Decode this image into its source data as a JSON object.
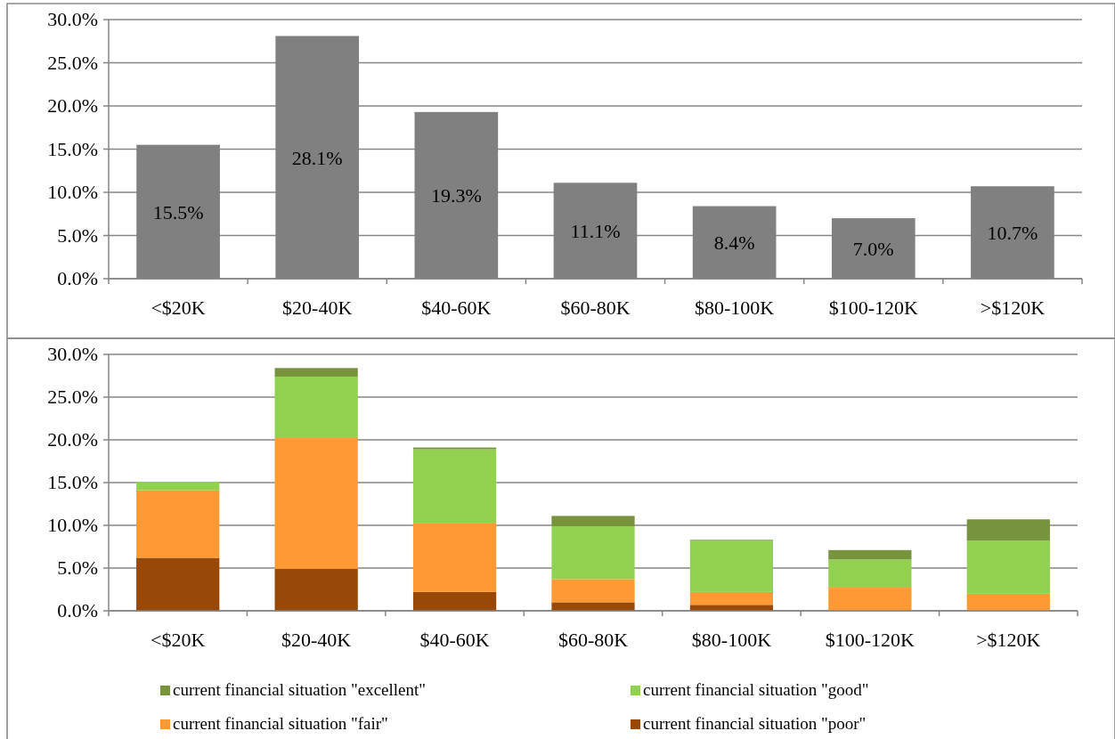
{
  "chart_data": [
    {
      "type": "bar",
      "categories": [
        "<$20K",
        "$20-40K",
        "$40-60K",
        "$60-80K",
        "$80-100K",
        "$100-120K",
        ">$120K"
      ],
      "values": [
        15.5,
        28.1,
        19.3,
        11.1,
        8.4,
        7.0,
        10.7
      ],
      "value_labels": [
        "15.5%",
        "28.1%",
        "19.3%",
        "11.1%",
        "8.4%",
        "7.0%",
        "10.7%"
      ],
      "color": "#808080",
      "ylim": [
        0,
        30
      ],
      "yticks": [
        {
          "value": 0,
          "label": "0.0%"
        },
        {
          "value": 5,
          "label": "5.0%"
        },
        {
          "value": 10,
          "label": "10.0%"
        },
        {
          "value": 15,
          "label": "15.0%"
        },
        {
          "value": 20,
          "label": "20.0%"
        },
        {
          "value": 25,
          "label": "25.0%"
        },
        {
          "value": 30,
          "label": "30.0%"
        }
      ],
      "grid": "y",
      "legend": false
    },
    {
      "type": "bar",
      "stacked": true,
      "categories": [
        "<$20K",
        "$20-40K",
        "$40-60K",
        "$60-80K",
        "$80-100K",
        "$100-120K",
        ">$120K"
      ],
      "series": [
        {
          "name": "current financial situation \"poor\"",
          "color": "#984807",
          "values": [
            6.2,
            4.9,
            2.2,
            1.0,
            0.7,
            0,
            0
          ]
        },
        {
          "name": "current financial situation \"fair\"",
          "color": "#ff9933",
          "values": [
            7.9,
            15.3,
            8.1,
            2.7,
            1.5,
            2.7,
            2.0
          ]
        },
        {
          "name": "current financial situation \"good\"",
          "color": "#92d050",
          "values": [
            1.0,
            7.2,
            8.6,
            6.2,
            6.0,
            3.3,
            6.2
          ]
        },
        {
          "name": "current financial situation \"excellent\"",
          "color": "#77933c",
          "values": [
            0,
            1.0,
            0.2,
            1.2,
            0.1,
            1.1,
            2.5
          ]
        }
      ],
      "ylim": [
        0,
        30
      ],
      "yticks": [
        {
          "value": 0,
          "label": "0.0%"
        },
        {
          "value": 5,
          "label": "5.0%"
        },
        {
          "value": 10,
          "label": "10.0%"
        },
        {
          "value": 15,
          "label": "15.0%"
        },
        {
          "value": 20,
          "label": "20.0%"
        },
        {
          "value": 25,
          "label": "25.0%"
        },
        {
          "value": 30,
          "label": "30.0%"
        }
      ],
      "grid": "y",
      "legend": "bottom"
    }
  ]
}
